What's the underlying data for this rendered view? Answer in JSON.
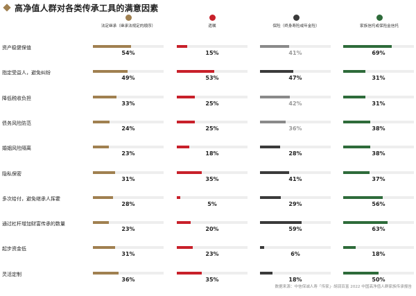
{
  "title": "高净值人群对各类传承工具的满意因素",
  "source": "数据来源：中信保诚人寿「传家」· 胡润百富 2022 中国高净值人群家族传承报告",
  "chart_data": {
    "type": "bar",
    "categories": [
      "资产稳健保值",
      "指定受益人，避免纠纷",
      "降低税收负担",
      "债务风险防范",
      "婚姻风险隔离",
      "隐私保密",
      "多次给付，避免继承人挥霍",
      "通过杠杆增加财富传承的数量",
      "起步资金低",
      "灵活定制"
    ],
    "series": [
      {
        "name": "法定继承（继承法规定的顺序）",
        "color": "#a08050",
        "values": [
          54,
          49,
          33,
          24,
          23,
          31,
          28,
          23,
          31,
          36
        ],
        "labels": [
          "54%",
          "49%",
          "33%",
          "24%",
          "23%",
          "31%",
          "28%",
          "23%",
          "31%",
          "36%"
        ],
        "value_colors": [
          "#222222",
          "#222222",
          "#222222",
          "#222222",
          "#222222",
          "#222222",
          "#222222",
          "#222222",
          "#222222",
          "#222222"
        ],
        "bar_colors": [
          "#a08050",
          "#a08050",
          "#a08050",
          "#a08050",
          "#a08050",
          "#a08050",
          "#a08050",
          "#a08050",
          "#a08050",
          "#a08050"
        ]
      },
      {
        "name": "遗嘱",
        "color": "#c8202a",
        "values": [
          15,
          53,
          25,
          25,
          18,
          35,
          5,
          20,
          23,
          35
        ],
        "labels": [
          "15%",
          "53%",
          "25%",
          "25%",
          "18%",
          "35%",
          "5%",
          "20%",
          "23%",
          "35%"
        ],
        "value_colors": [
          "#222222",
          "#222222",
          "#222222",
          "#222222",
          "#222222",
          "#222222",
          "#222222",
          "#222222",
          "#222222",
          "#222222"
        ],
        "bar_colors": [
          "#c8202a",
          "#c8202a",
          "#c8202a",
          "#c8202a",
          "#c8202a",
          "#c8202a",
          "#c8202a",
          "#c8202a",
          "#c8202a",
          "#c8202a"
        ]
      },
      {
        "name": "保险（终身寿险或年金险）",
        "color": "#3a3a3a",
        "values": [
          41,
          47,
          42,
          36,
          28,
          41,
          29,
          59,
          6,
          18
        ],
        "labels": [
          "41%",
          "47%",
          "42%",
          "36%",
          "28%",
          "41%",
          "29%",
          "59%",
          "6%",
          "18%"
        ],
        "value_colors": [
          "#999999",
          "#222222",
          "#999999",
          "#999999",
          "#222222",
          "#222222",
          "#222222",
          "#222222",
          "#222222",
          "#222222"
        ],
        "bar_colors": [
          "#8a8a8a",
          "#3a3a3a",
          "#8a8a8a",
          "#8a8a8a",
          "#3a3a3a",
          "#3a3a3a",
          "#3a3a3a",
          "#3a3a3a",
          "#3a3a3a",
          "#3a3a3a"
        ]
      },
      {
        "name": "家族信托或保险金信托",
        "color": "#2e6b3a",
        "values": [
          69,
          31,
          31,
          38,
          38,
          37,
          56,
          63,
          18,
          50
        ],
        "labels": [
          "69%",
          "31%",
          "31%",
          "38%",
          "38%",
          "37%",
          "56%",
          "63%",
          "18%",
          "50%"
        ],
        "value_colors": [
          "#222222",
          "#222222",
          "#222222",
          "#222222",
          "#222222",
          "#222222",
          "#222222",
          "#222222",
          "#222222",
          "#222222"
        ],
        "bar_colors": [
          "#2e6b3a",
          "#2e6b3a",
          "#2e6b3a",
          "#2e6b3a",
          "#2e6b3a",
          "#2e6b3a",
          "#2e6b3a",
          "#2e6b3a",
          "#2e6b3a",
          "#2e6b3a"
        ]
      }
    ],
    "xlim": [
      0,
      100
    ],
    "grid": false,
    "legend": "top"
  }
}
